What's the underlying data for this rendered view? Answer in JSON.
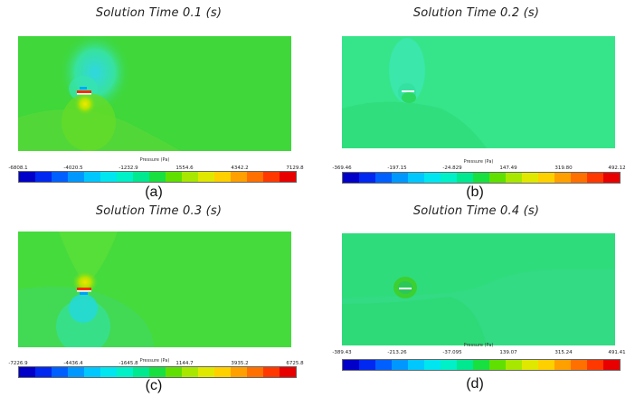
{
  "panels": [
    {
      "title": "Solution Time 0.1 (s)",
      "colorbar_label": "Pressure (Pa)",
      "ticks": [
        "-6808.1",
        "-4020.5",
        "-1232.9",
        "1554.6",
        "4342.2",
        "7129.8"
      ],
      "sublabel": "(a)"
    },
    {
      "title": "Solution Time 0.2 (s)",
      "colorbar_label": "Pressure (Pa)",
      "ticks": [
        "-369.46",
        "-197.15",
        "-24.829",
        "147.49",
        "319.80",
        "492.12"
      ],
      "sublabel": "(b)"
    },
    {
      "title": "Solution Time 0.3 (s)",
      "colorbar_label": "Pressure (Pa)",
      "ticks": [
        "-7226.9",
        "-4436.4",
        "-1645.8",
        "1144.7",
        "3935.2",
        "6725.8"
      ],
      "sublabel": "(c)"
    },
    {
      "title": "Solution Time 0.4 (s)",
      "colorbar_label": "Pressure (Pa)",
      "ticks": [
        "-389.43",
        "-213.26",
        "-37.095",
        "139.07",
        "315.24",
        "491.41"
      ],
      "sublabel": "(d)"
    }
  ],
  "colors": {
    "colormap": [
      "#0000c8",
      "#0028f0",
      "#0060ff",
      "#0098ff",
      "#00c8ff",
      "#00e6f0",
      "#00f0c8",
      "#00e890",
      "#18e040",
      "#60e000",
      "#a8e800",
      "#e0e800",
      "#ffd000",
      "#ffa000",
      "#ff7000",
      "#ff3800",
      "#e80000"
    ],
    "field_a": "#3fd73a",
    "field_b": "#36e58a",
    "field_c": "#46db3c",
    "field_d": "#2fdc7c"
  }
}
